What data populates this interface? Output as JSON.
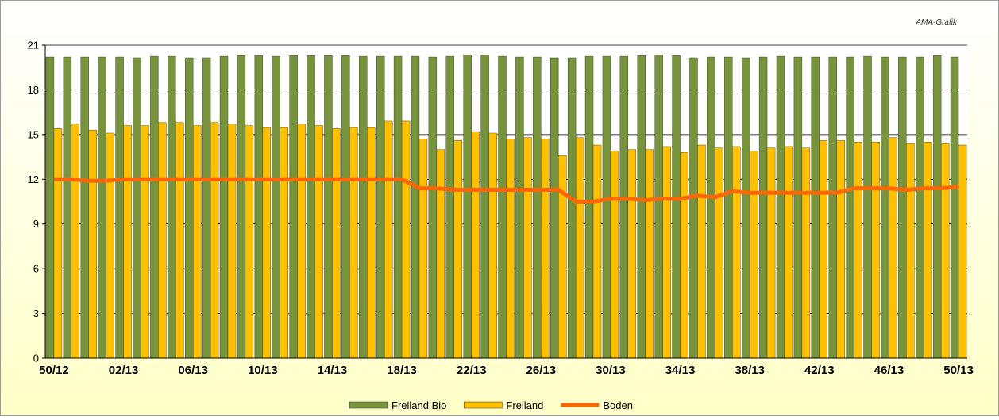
{
  "chart_data": {
    "type": "bar",
    "source_note": "AMA-Grafik",
    "categories": [
      "50/12",
      null,
      null,
      null,
      "02/13",
      null,
      null,
      null,
      "06/13",
      null,
      null,
      null,
      "10/13",
      null,
      null,
      null,
      "14/13",
      null,
      null,
      null,
      "18/13",
      null,
      null,
      null,
      "22/13",
      null,
      null,
      null,
      "26/13",
      null,
      null,
      null,
      "30/13",
      null,
      null,
      null,
      "34/13",
      null,
      null,
      null,
      "38/13",
      null,
      null,
      null,
      "42/13",
      null,
      null,
      null,
      "46/13",
      null,
      null,
      null,
      "50/13"
    ],
    "series": [
      {
        "name": "Freiland Bio",
        "color": "#77933c",
        "kind": "bar",
        "values": [
          20.2,
          20.2,
          20.2,
          20.2,
          20.2,
          20.15,
          20.25,
          20.25,
          20.15,
          20.15,
          20.25,
          20.3,
          20.3,
          20.25,
          20.3,
          20.3,
          20.3,
          20.3,
          20.25,
          20.25,
          20.25,
          20.25,
          20.2,
          20.25,
          20.35,
          20.35,
          20.25,
          20.2,
          20.2,
          20.15,
          20.15,
          20.25,
          20.25,
          20.25,
          20.3,
          20.35,
          20.3,
          20.15,
          20.2,
          20.2,
          20.15,
          20.2,
          20.25,
          20.2,
          20.2,
          20.2,
          20.2,
          20.25,
          20.2,
          20.2,
          20.2,
          20.3,
          20.2
        ]
      },
      {
        "name": "Freiland",
        "color": "#ffc000",
        "kind": "bar",
        "values": [
          15.4,
          15.7,
          15.3,
          15.1,
          15.6,
          15.6,
          15.8,
          15.8,
          15.6,
          15.8,
          15.7,
          15.6,
          15.5,
          15.5,
          15.7,
          15.6,
          15.4,
          15.5,
          15.5,
          15.9,
          15.9,
          14.7,
          14.0,
          14.6,
          15.2,
          15.1,
          14.7,
          14.8,
          14.7,
          13.6,
          14.8,
          14.3,
          13.9,
          14.0,
          14.0,
          14.2,
          13.8,
          14.3,
          14.1,
          14.2,
          13.9,
          14.1,
          14.2,
          14.1,
          14.6,
          14.6,
          14.5,
          14.5,
          14.8,
          14.4,
          14.5,
          14.4,
          14.3
        ]
      },
      {
        "name": "Boden",
        "color": "#ff6600",
        "kind": "line",
        "values": [
          12.0,
          12.0,
          11.9,
          11.9,
          12.0,
          12.0,
          12.0,
          12.0,
          12.0,
          12.0,
          12.0,
          12.0,
          12.0,
          12.0,
          12.0,
          12.0,
          12.0,
          12.0,
          12.0,
          12.0,
          12.0,
          11.4,
          11.4,
          11.3,
          11.3,
          11.3,
          11.3,
          11.3,
          11.3,
          11.3,
          10.5,
          10.5,
          10.7,
          10.7,
          10.6,
          10.7,
          10.7,
          10.9,
          10.8,
          11.2,
          11.1,
          11.1,
          11.1,
          11.1,
          11.1,
          11.1,
          11.4,
          11.4,
          11.4,
          11.3,
          11.4,
          11.4,
          11.5
        ]
      }
    ],
    "ylim": [
      0,
      21
    ],
    "yticks": [
      0,
      3,
      6,
      9,
      12,
      15,
      18,
      21
    ],
    "grid": true,
    "legend": "bottom"
  }
}
